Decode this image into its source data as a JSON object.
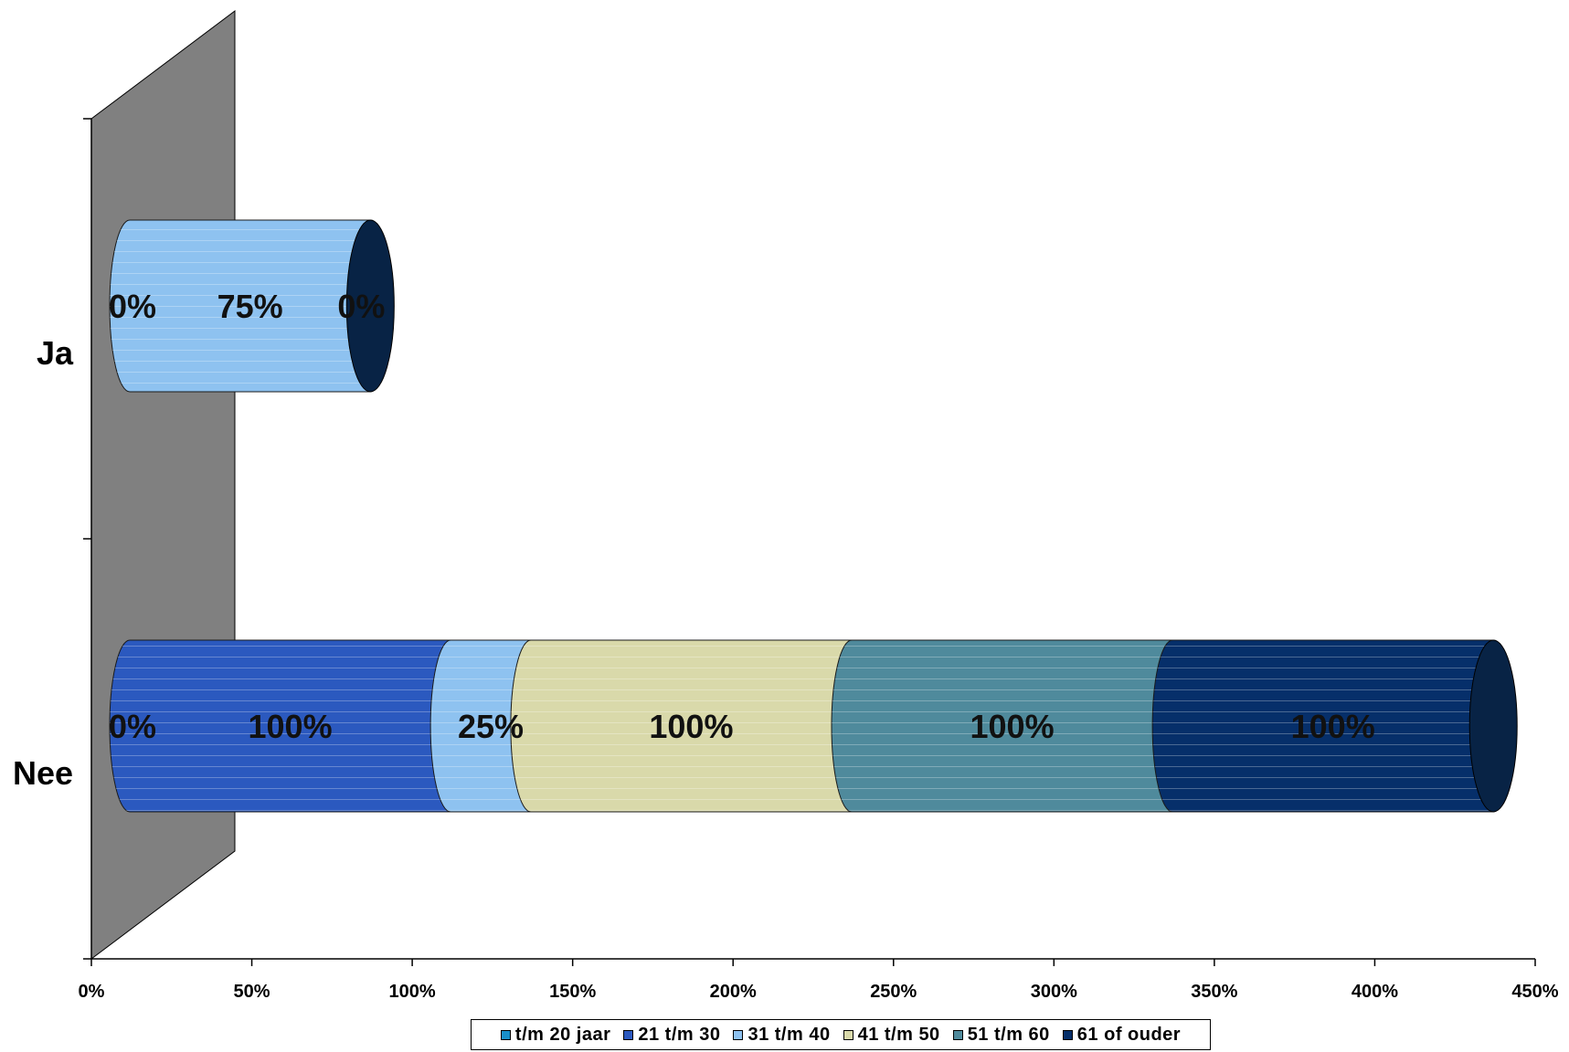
{
  "chart_data": {
    "type": "bar",
    "orientation": "horizontal",
    "stacked": true,
    "style": "3d-cylinder",
    "categories": [
      "Ja",
      "Nee"
    ],
    "series": [
      {
        "name": "t/m 20 jaar",
        "color": "#1a8fc9",
        "values": [
          0,
          0
        ],
        "labels": [
          "0%",
          "0%"
        ]
      },
      {
        "name": "21 t/m 30",
        "color": "#2b59bf",
        "values": [
          0,
          100
        ],
        "labels": [
          "",
          "100%"
        ]
      },
      {
        "name": "31 t/m 40",
        "color": "#8ec2f0",
        "values": [
          75,
          25
        ],
        "labels": [
          "75%",
          "25%"
        ]
      },
      {
        "name": "41 t/m 50",
        "color": "#d9d9aa",
        "values": [
          0,
          100
        ],
        "labels": [
          "",
          "100%"
        ]
      },
      {
        "name": "51 t/m 60",
        "color": "#4f8a9c",
        "values": [
          0,
          100
        ],
        "labels": [
          "",
          "100%"
        ]
      },
      {
        "name": "61 of ouder",
        "color": "#062f6a",
        "values": [
          0,
          100
        ],
        "labels": [
          "0%",
          "100%"
        ]
      }
    ],
    "x_ticks": [
      "0%",
      "50%",
      "100%",
      "150%",
      "200%",
      "250%",
      "300%",
      "350%",
      "400%",
      "450%"
    ],
    "xlim": [
      0,
      450
    ],
    "grid": false,
    "legend_position": "bottom",
    "wall_color": "#808080"
  }
}
